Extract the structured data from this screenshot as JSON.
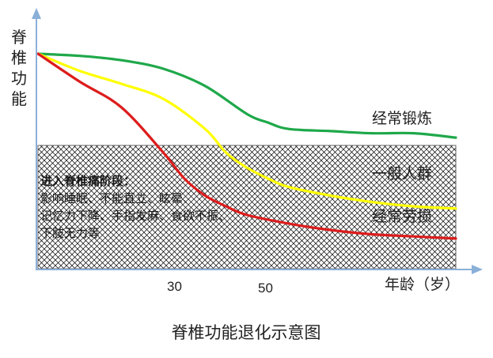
{
  "chart_data": {
    "type": "line",
    "title": "脊椎功能退化示意图",
    "ylabel": "脊椎功能",
    "xlabel": "年龄（岁）",
    "x_ticks": [
      30,
      50
    ],
    "xlim": [
      0,
      100
    ],
    "ylim": [
      0,
      100
    ],
    "grid": false,
    "series": [
      {
        "name": "经常锻炼",
        "color": "#1fa84a",
        "x": [
          0,
          10,
          20,
          30,
          40,
          50,
          55,
          60,
          70,
          80,
          90,
          100
        ],
        "y": [
          100,
          99,
          97,
          93,
          85,
          72,
          68,
          65,
          64,
          63,
          63,
          61
        ]
      },
      {
        "name": "一般人群",
        "color": "#ffff00",
        "x": [
          0,
          10,
          20,
          30,
          40,
          45,
          50,
          55,
          60,
          70,
          80,
          90,
          100
        ],
        "y": [
          100,
          92,
          86,
          79,
          65,
          54,
          47,
          42,
          38,
          34,
          31,
          29,
          28
        ]
      },
      {
        "name": "经常劳损",
        "color": "#dd1c1c",
        "x": [
          0,
          10,
          20,
          30,
          35,
          40,
          45,
          50,
          60,
          70,
          80,
          90,
          100
        ],
        "y": [
          100,
          87,
          75,
          54,
          42,
          34,
          29,
          25,
          21,
          18,
          16,
          15,
          14
        ]
      }
    ],
    "annotation": {
      "title": "进入脊椎痛阶段：",
      "lines": [
        "影响睡眠、不能直立、眩晕、",
        "记忆力下降、手指发麻、食欲不振、",
        "下肢无力等"
      ]
    },
    "colors": {
      "axis": "#8ab0d8",
      "hatch": "#000000",
      "text": "#222222"
    }
  }
}
